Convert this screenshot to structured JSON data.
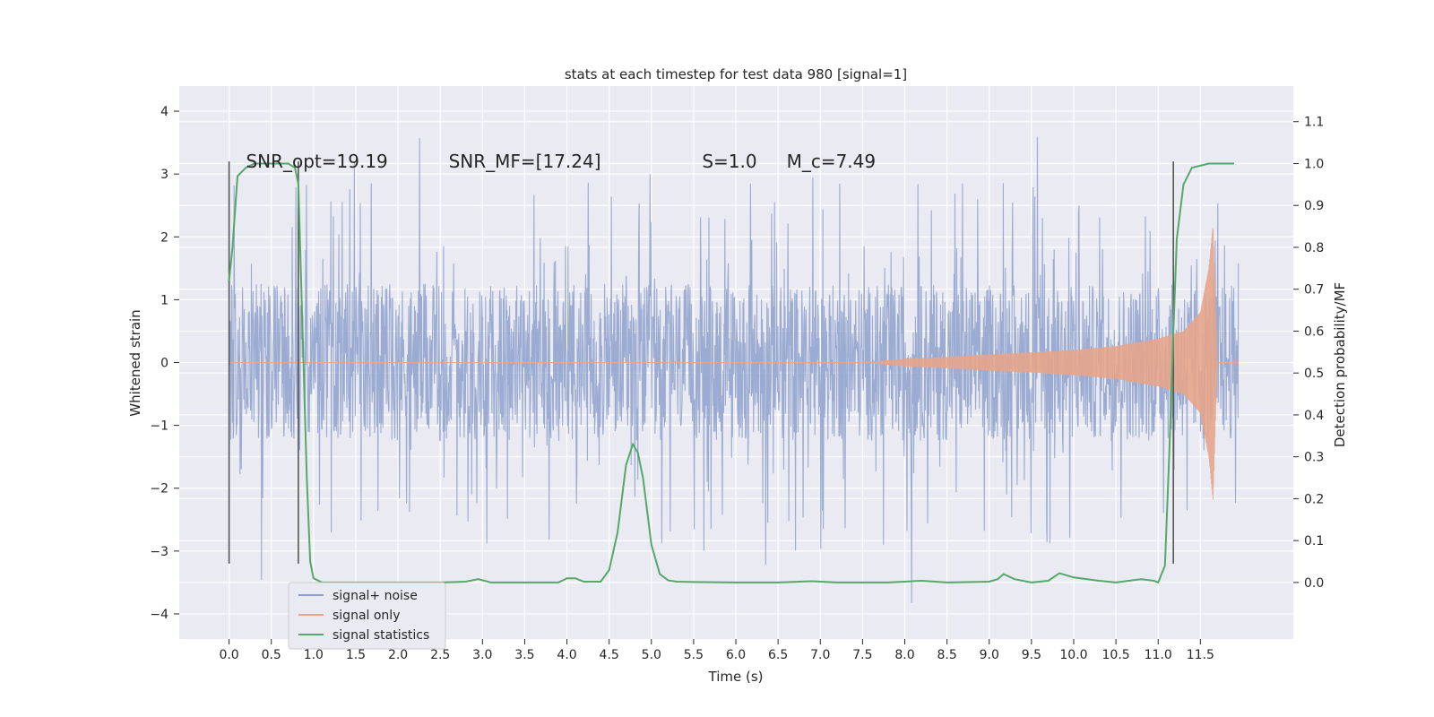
{
  "chart_data": {
    "type": "line",
    "title": "stats at each timestep for test data 980 [signal=1]",
    "xlabel": "Time (s)",
    "ylabel": "Whitened strain",
    "y2label": "Detection probability/MF",
    "xlim": [
      -0.59,
      12.6
    ],
    "ylim": [
      -4.4,
      4.4
    ],
    "y2lim": [
      -0.135,
      1.185
    ],
    "x_ticks": [
      "0.0",
      "0.5",
      "1.0",
      "1.5",
      "2.0",
      "2.5",
      "3.0",
      "3.5",
      "4.0",
      "4.5",
      "5.0",
      "5.5",
      "6.0",
      "6.5",
      "7.0",
      "7.5",
      "8.0",
      "8.5",
      "9.0",
      "9.5",
      "10.0",
      "10.5",
      "11.0",
      "11.5"
    ],
    "y_ticks": [
      "−4",
      "−3",
      "−2",
      "−1",
      "0",
      "1",
      "2",
      "3",
      "4"
    ],
    "y2_ticks": [
      "0.0",
      "0.1",
      "0.2",
      "0.3",
      "0.4",
      "0.5",
      "0.6",
      "0.7",
      "0.8",
      "0.9",
      "1.0",
      "1.1"
    ],
    "grid": true,
    "legend_position": "lower-left",
    "annotations": [
      {
        "id": "snr-opt",
        "text": "SNR_opt=19.19",
        "x": 0.2,
        "y": 3.2
      },
      {
        "id": "snr-mf",
        "text": "SNR_MF=[17.24]",
        "x": 2.6,
        "y": 3.2
      },
      {
        "id": "s-value",
        "text": "S=1.0",
        "x": 5.6,
        "y": 3.2
      },
      {
        "id": "mc-value",
        "text": "M_c=7.49",
        "x": 6.6,
        "y": 3.2
      }
    ],
    "vertical_lines": [
      {
        "x": 0.0,
        "ymin": -3.2,
        "ymax": 3.2
      },
      {
        "x": 0.82,
        "ymin": -3.2,
        "ymax": 3.2
      },
      {
        "x": 11.18,
        "ymin": -3.2,
        "ymax": 3.2
      }
    ],
    "series": [
      {
        "name": "signal+ noise",
        "color": "#8da0cb",
        "description_points": "noise band approx ±1.3 with spikes up to ±3.5",
        "x_range": [
          0.0,
          11.95
        ],
        "core_amplitude": 1.25,
        "spike_max": 4.0
      },
      {
        "name": "signal only",
        "color": "#e5a58b",
        "envelope": [
          [
            7.5,
            0.0
          ],
          [
            8.0,
            0.06
          ],
          [
            8.5,
            0.09
          ],
          [
            9.0,
            0.13
          ],
          [
            9.5,
            0.16
          ],
          [
            10.0,
            0.2
          ],
          [
            10.5,
            0.26
          ],
          [
            11.0,
            0.38
          ],
          [
            11.3,
            0.5
          ],
          [
            11.5,
            0.8
          ],
          [
            11.6,
            1.5
          ],
          [
            11.65,
            2.2
          ],
          [
            11.7,
            0.0
          ]
        ]
      },
      {
        "name": "signal statistics",
        "color": "#55a868",
        "x": [
          0.0,
          0.04,
          0.1,
          0.2,
          0.3,
          0.5,
          0.7,
          0.78,
          0.82,
          0.87,
          0.92,
          0.96,
          1.0,
          1.1,
          1.5,
          2.0,
          2.5,
          2.8,
          2.95,
          3.1,
          3.5,
          3.9,
          4.0,
          4.1,
          4.2,
          4.4,
          4.5,
          4.6,
          4.7,
          4.78,
          4.84,
          4.9,
          5.0,
          5.1,
          5.2,
          5.3,
          5.5,
          6.0,
          6.5,
          6.9,
          7.2,
          7.8,
          8.2,
          8.5,
          9.0,
          9.1,
          9.17,
          9.3,
          9.5,
          9.7,
          9.83,
          10.0,
          10.3,
          10.5,
          10.8,
          10.95,
          11.0,
          11.08,
          11.13,
          11.18,
          11.22,
          11.3,
          11.4,
          11.6,
          11.8,
          11.9
        ],
        "y": [
          0.72,
          0.8,
          0.97,
          0.99,
          1.0,
          1.0,
          1.0,
          0.99,
          0.95,
          0.6,
          0.25,
          0.05,
          0.01,
          0.0,
          0.0,
          0.0,
          0.0,
          0.002,
          0.008,
          0.0,
          0.0,
          0.0,
          0.01,
          0.01,
          0.002,
          0.002,
          0.03,
          0.12,
          0.28,
          0.33,
          0.31,
          0.25,
          0.09,
          0.02,
          0.005,
          0.002,
          0.001,
          0.0,
          0.0,
          0.003,
          0.0,
          0.0,
          0.004,
          0.0,
          0.002,
          0.008,
          0.02,
          0.008,
          0.0,
          0.004,
          0.022,
          0.012,
          0.004,
          0.0,
          0.008,
          0.004,
          0.0,
          0.04,
          0.3,
          0.6,
          0.82,
          0.95,
          0.99,
          1.0,
          1.0,
          1.0
        ]
      }
    ]
  }
}
